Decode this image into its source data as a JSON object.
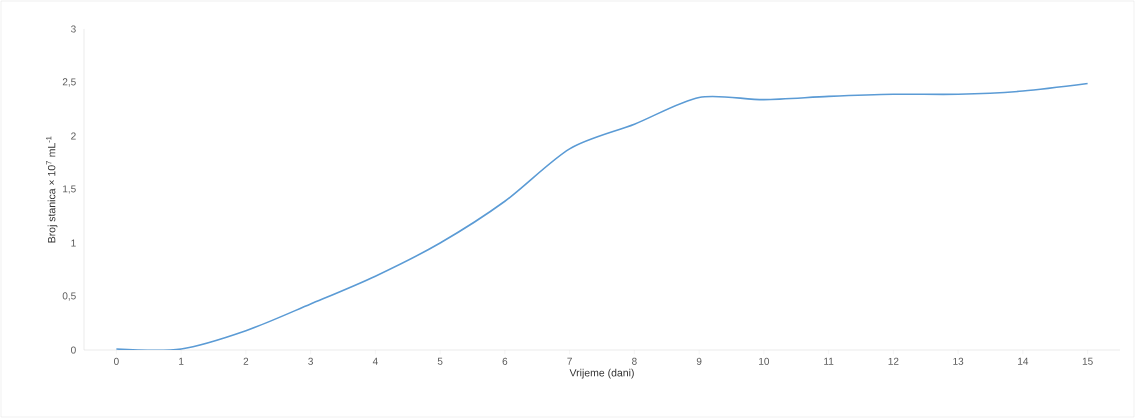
{
  "chart_data": {
    "type": "line",
    "xlabel": "Vrijeme (dani)",
    "ylabel": "Broj stanica × 10$^{7}$ mL$^{-1}$",
    "categories": [
      "0",
      "1",
      "2",
      "3",
      "4",
      "5",
      "6",
      "7",
      "8",
      "9",
      "10",
      "11",
      "12",
      "13",
      "14",
      "15"
    ],
    "series": [
      {
        "color": "#5b9bd5",
        "values": [
          0.01,
          0.01,
          0.18,
          0.43,
          0.69,
          1.0,
          1.39,
          1.88,
          2.11,
          2.36,
          2.34,
          2.37,
          2.39,
          2.39,
          2.42,
          2.49
        ]
      }
    ],
    "ylim": [
      0,
      3
    ],
    "yticks": [
      0,
      {
        "value": 0.5,
        "label": "0,5"
      },
      1,
      {
        "value": 1.5,
        "label": "1,5"
      },
      2,
      {
        "value": 2.5,
        "label": "2,5"
      },
      3
    ]
  }
}
